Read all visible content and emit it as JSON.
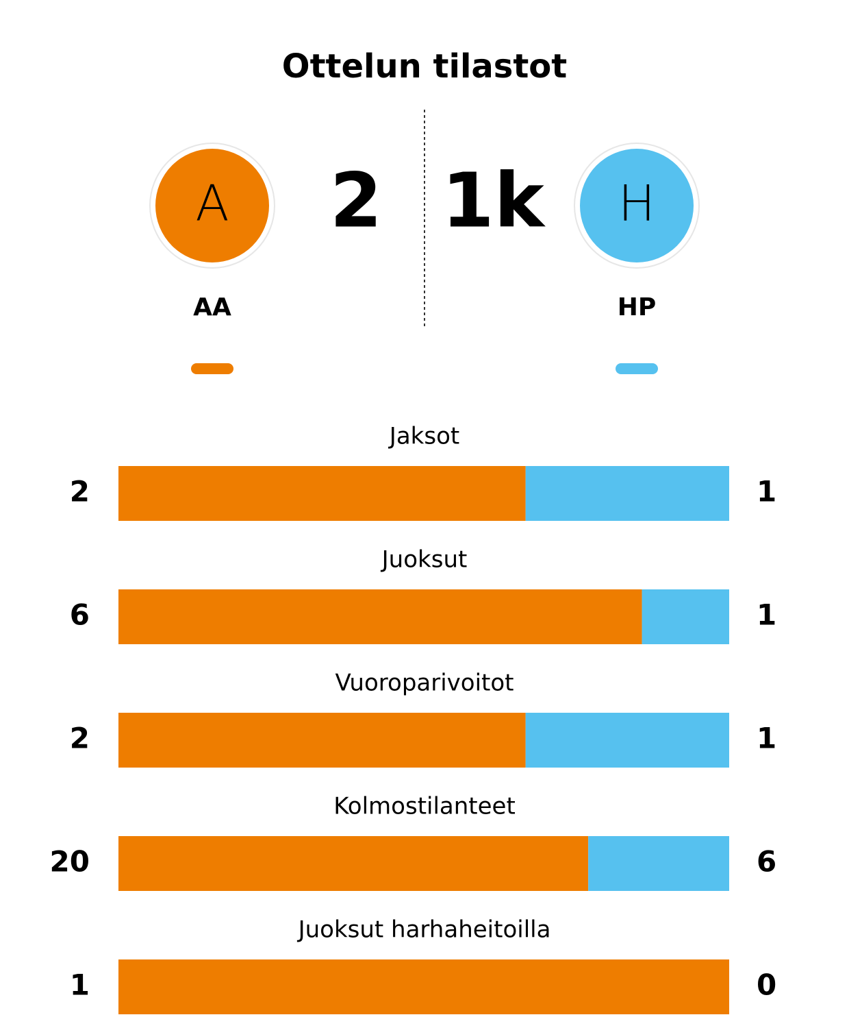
{
  "title": "Ottelun tilastot",
  "home": {
    "initial": "A",
    "name": "AA",
    "score": 2,
    "color": "#ee7d00"
  },
  "away": {
    "initial": "H",
    "name": "HP",
    "score": "1k",
    "color": "#56c1ef"
  },
  "stats": [
    {
      "label": "Jaksot",
      "home": 2,
      "away": 1
    },
    {
      "label": "Juoksut",
      "home": 6,
      "away": 1
    },
    {
      "label": "Vuoroparivoitot",
      "home": 2,
      "away": 1
    },
    {
      "label": "Kolmostilanteet",
      "home": 20,
      "away": 6
    },
    {
      "label": "Juoksut harhaheitoilla",
      "home": 1,
      "away": 0
    }
  ]
}
